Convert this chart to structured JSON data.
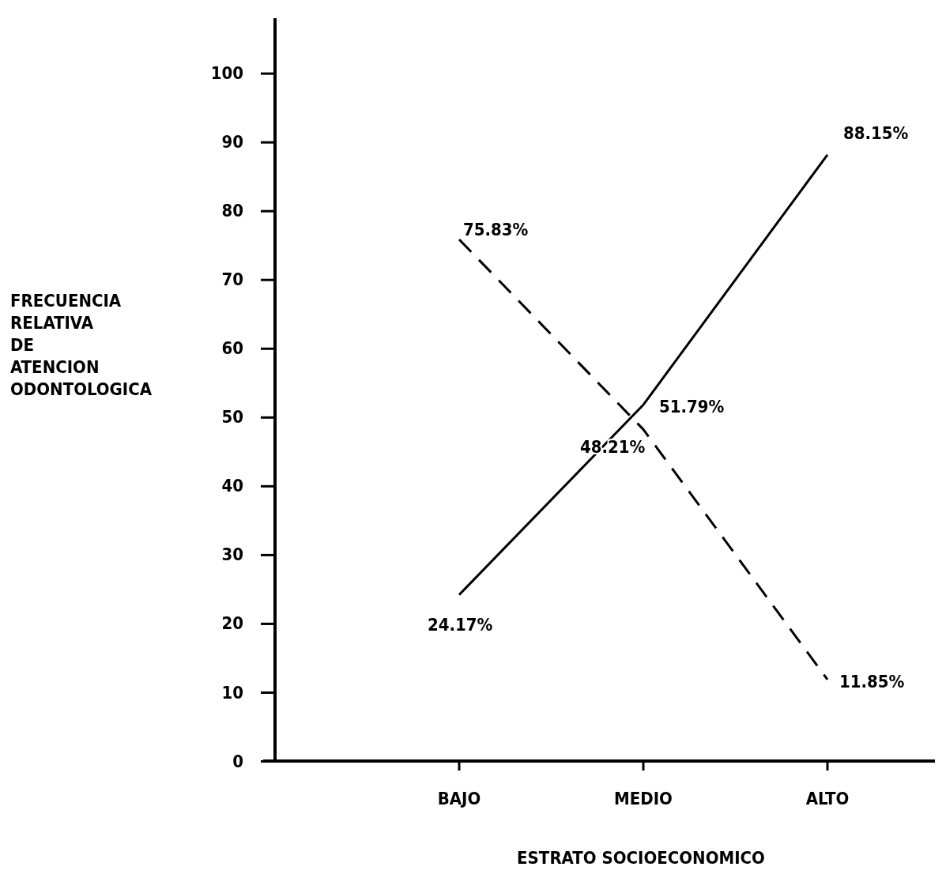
{
  "chart_data": {
    "type": "line",
    "xlabel": "ESTRATO SOCIOECONOMICO",
    "ylabel": "FRECUENCIA RELATIVA DE ATENCION ODONTOLOGICA",
    "categories": [
      "BAJO",
      "MEDIO",
      "ALTO"
    ],
    "series": [
      {
        "color": "#000000",
        "line_style": "solid",
        "values": [
          24.17,
          51.79,
          88.15
        ],
        "value_labels": [
          "24.17%",
          "51.79%",
          "88.15%"
        ]
      },
      {
        "color": "#000000",
        "line_style": "dashed",
        "values": [
          75.83,
          48.21,
          11.85
        ],
        "value_labels": [
          "75.83%",
          "48.21%",
          "11.85%"
        ]
      }
    ],
    "ylim": [
      0,
      108
    ],
    "yticks": [
      0,
      10,
      20,
      30,
      40,
      50,
      60,
      70,
      80,
      90,
      100
    ],
    "grid": false,
    "marker": "none"
  }
}
